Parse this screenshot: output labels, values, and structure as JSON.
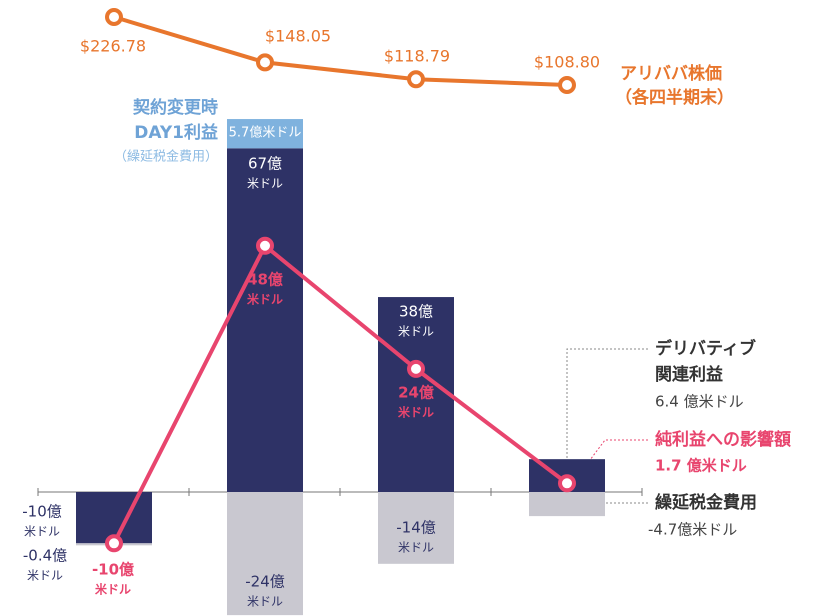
{
  "chart_data": {
    "type": "bar",
    "unit_label": "米ドル",
    "series": [
      {
        "label_lines": [
          "デリバティブ",
          "関連利益"
        ],
        "color": "#2e3266",
        "values": [
          -10,
          67,
          38,
          6.4
        ],
        "value_labels": [
          "-10億",
          "67億",
          "38億",
          "6.4 億米ドル"
        ]
      },
      {
        "label_lines": [
          "契約変更時",
          "DAY1利益"
        ],
        "note": "（繰延税金費用）",
        "color": "#7fb2de",
        "values": [
          null,
          5.7,
          null,
          null
        ],
        "value_labels": [
          null,
          "5.7億米ドル",
          null,
          null
        ]
      },
      {
        "name": "繰延税金費用",
        "color": "#c9c8d0",
        "values": [
          -0.4,
          -24,
          -14,
          -4.7
        ],
        "value_labels": [
          "-0.4億",
          "-24億",
          "-14億",
          "-4.7億米ドル"
        ]
      },
      {
        "name": "純利益への影響額",
        "type": "line",
        "color": "#e8456e",
        "values": [
          -10,
          48,
          24,
          1.7
        ],
        "value_labels": [
          "-10億",
          "48億",
          "24億",
          "1.7 億米ドル"
        ]
      },
      {
        "label_lines": [
          "アリババ株価",
          "（各四半期末）"
        ],
        "type": "line",
        "axis": "y2",
        "color": "#e8762d",
        "values": [
          226.78,
          148.05,
          118.79,
          108.8
        ],
        "value_labels": [
          "$226.78",
          "$148.05",
          "$118.79",
          "$108.80"
        ]
      }
    ]
  }
}
